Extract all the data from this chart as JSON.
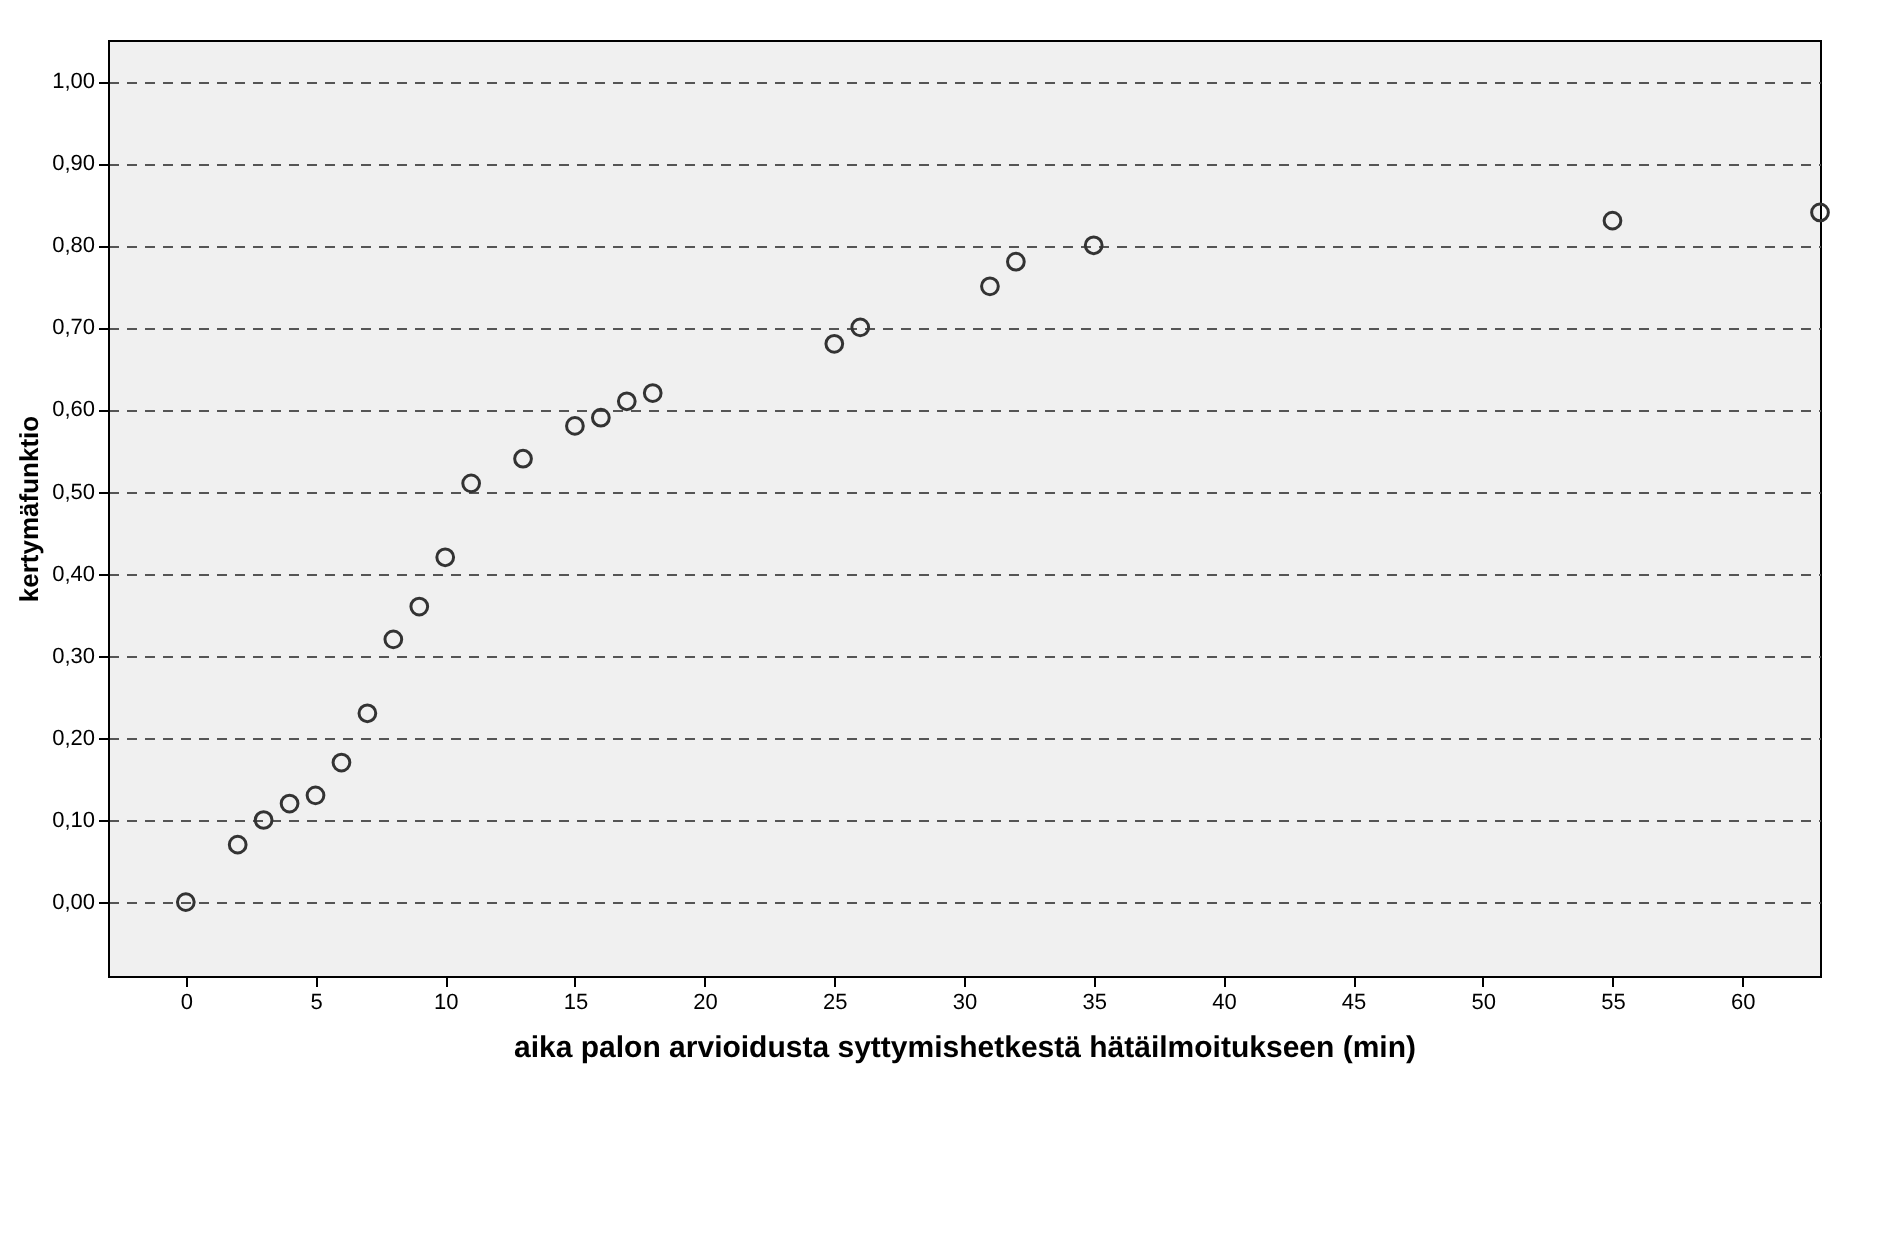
{
  "chart_data": {
    "type": "scatter",
    "xlabel": "aika palon arvioidusta syttymishetkestä hätäilmoitukseen (min)",
    "ylabel": "kertymäfunktio",
    "x": [
      0,
      2,
      3,
      4,
      5,
      6,
      7,
      8,
      9,
      10,
      11,
      13,
      15,
      16,
      17,
      18,
      25,
      26,
      31,
      32,
      35,
      55,
      63
    ],
    "series": [
      {
        "color": "#333333",
        "values": [
          0,
          0.07,
          0.1,
          0.12,
          0.13,
          0.17,
          0.23,
          0.32,
          0.36,
          0.42,
          0.51,
          0.54,
          0.58,
          0.59,
          0.61,
          0.62,
          0.68,
          0.7,
          0.75,
          0.78,
          0.8,
          0.83,
          0.84
        ]
      }
    ],
    "xlim": [
      -3,
      63
    ],
    "xticks": [
      0,
      5,
      10,
      15,
      20,
      25,
      30,
      35,
      40,
      45,
      50,
      55,
      60
    ],
    "ylim": [
      -0.09,
      1.05
    ],
    "yticks": [
      {
        "value": 0,
        "label": "0,00"
      },
      {
        "value": 0.1,
        "label": "0,10"
      },
      {
        "value": 0.2,
        "label": "0,20"
      },
      {
        "value": 0.3,
        "label": "0,30"
      },
      {
        "value": 0.4,
        "label": "0,40"
      },
      {
        "value": 0.5,
        "label": "0,50"
      },
      {
        "value": 0.6,
        "label": "0,60"
      },
      {
        "value": 0.7,
        "label": "0,70"
      },
      {
        "value": 0.8,
        "label": "0,80"
      },
      {
        "value": 0.9,
        "label": "0,90"
      },
      {
        "value": 1,
        "label": "1,00"
      }
    ],
    "grid": "y",
    "marker": "circle",
    "line_style": "dashed"
  }
}
